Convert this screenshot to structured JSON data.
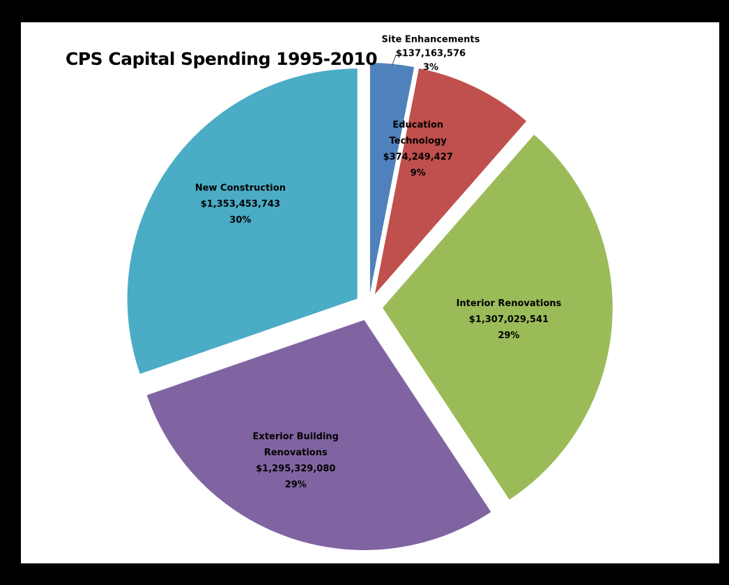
{
  "chart_data": {
    "type": "pie",
    "title": "CPS Capital Spending 1995-2010",
    "exploded": true,
    "slices": [
      {
        "label_lines": [
          "Site Enhancements"
        ],
        "amount": "$137,163,576",
        "percent": "3%",
        "value": 137163576,
        "color": "#4f81bd",
        "label_placement": "outside-leader"
      },
      {
        "label_lines": [
          "Education",
          "Technology"
        ],
        "amount": "$374,249,427",
        "percent": "9%",
        "value": 374249427,
        "color": "#c0504d",
        "label_placement": "inside"
      },
      {
        "label_lines": [
          "Interior Renovations"
        ],
        "amount": "$1,307,029,541",
        "percent": "29%",
        "value": 1307029541,
        "color": "#9bbb59",
        "label_placement": "inside"
      },
      {
        "label_lines": [
          "Exterior Building",
          "Renovations"
        ],
        "amount": "$1,295,329,080",
        "percent": "29%",
        "value": 1295329080,
        "color": "#8064a2",
        "label_placement": "inside"
      },
      {
        "label_lines": [
          "New Construction"
        ],
        "amount": "$1,353,453,743",
        "percent": "30%",
        "value": 1353453743,
        "color": "#4bacc6",
        "label_placement": "inside"
      }
    ]
  }
}
